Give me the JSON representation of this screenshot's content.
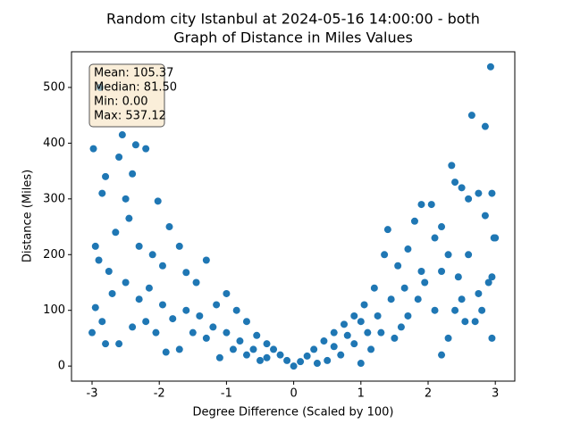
{
  "chart_data": {
    "type": "scatter",
    "title": [
      "Random city Istanbul at 2024-05-16 14:00:00  - both",
      "Graph of Distance in Miles Values"
    ],
    "xlabel": "Degree Difference (Scaled by 100)",
    "ylabel": "Distance (Miles)",
    "stats": [
      "Mean: 105.37",
      "Median: 81.50",
      "Min: 0.00",
      "Max: 537.12"
    ],
    "color": "#1f77b4",
    "xlim": [
      -3.306,
      3.29
    ],
    "ylim": [
      -27,
      564
    ],
    "xticks": [
      -3,
      -2,
      -1,
      0,
      1,
      2,
      3
    ],
    "yticks": [
      0,
      100,
      200,
      300,
      400,
      500
    ],
    "x": [
      -2.98,
      -2.85,
      -2.8,
      -2.6,
      -2.55,
      -2.4,
      -2.35,
      -2.2,
      -2.88,
      -2.02,
      -2.95,
      -2.9,
      -2.75,
      -2.65,
      -2.5,
      -2.45,
      -2.3,
      -2.1,
      -1.95,
      -1.85,
      -1.7,
      -1.6,
      -1.45,
      -1.3,
      -1.15,
      -1.0,
      -0.85,
      -0.7,
      -0.55,
      -0.4,
      -0.3,
      -0.2,
      -0.1,
      0,
      0.1,
      0.2,
      0.3,
      0.45,
      0.6,
      0.75,
      0.9,
      1.05,
      1.2,
      1.35,
      1.4,
      1.55,
      1.7,
      1.8,
      1.9,
      2.05,
      2.1,
      2.2,
      2.3,
      2.35,
      2.4,
      2.5,
      2.6,
      2.65,
      2.75,
      2.85,
      2.93,
      2.95,
      2.98,
      2.9,
      2.95,
      2.7,
      2.8,
      2.5,
      2.3,
      2.2,
      2.1,
      1.95,
      1.85,
      1.7,
      1.6,
      1.5,
      1.3,
      1.15,
      1.0,
      1.1,
      0.9,
      0.7,
      0.5,
      0.35,
      -0.5,
      -0.7,
      -0.9,
      -1.1,
      -1.3,
      -1.5,
      -1.7,
      -1.9,
      -2.05,
      -2.2,
      -2.4,
      -2.6,
      -2.8,
      -3.0,
      -2.95,
      -2.85,
      -2.7,
      -2.5,
      -2.3,
      -2.15,
      -1.95,
      -1.8,
      -1.6,
      -1.4,
      -1.2,
      -1.0,
      -0.8,
      -0.6,
      -0.4,
      0.6,
      0.8,
      1.0,
      1.25,
      1.45,
      1.65,
      1.9,
      2.2,
      2.45,
      2.6,
      2.85,
      3.0,
      2.95,
      2.75,
      2.55,
      2.4
    ],
    "values": [
      390,
      310,
      340,
      375,
      415,
      345,
      397,
      390,
      500,
      296,
      215,
      190,
      170,
      240,
      300,
      265,
      215,
      200,
      180,
      250,
      215,
      168,
      150,
      190,
      110,
      130,
      100,
      80,
      55,
      40,
      30,
      20,
      10,
      0,
      8,
      18,
      30,
      45,
      60,
      75,
      90,
      110,
      140,
      200,
      245,
      180,
      210,
      260,
      290,
      290,
      230,
      250,
      200,
      360,
      330,
      320,
      300,
      450,
      310,
      430,
      537,
      310,
      230,
      150,
      50,
      80,
      100,
      120,
      50,
      20,
      100,
      150,
      120,
      90,
      70,
      50,
      60,
      30,
      5,
      60,
      40,
      20,
      10,
      5,
      10,
      20,
      30,
      15,
      50,
      60,
      30,
      25,
      60,
      80,
      70,
      40,
      40,
      60,
      105,
      80,
      130,
      150,
      120,
      140,
      110,
      85,
      100,
      90,
      70,
      60,
      45,
      30,
      15,
      35,
      55,
      80,
      90,
      120,
      140,
      170,
      170,
      160,
      200,
      270,
      230,
      160,
      130,
      80,
      100
    ]
  }
}
